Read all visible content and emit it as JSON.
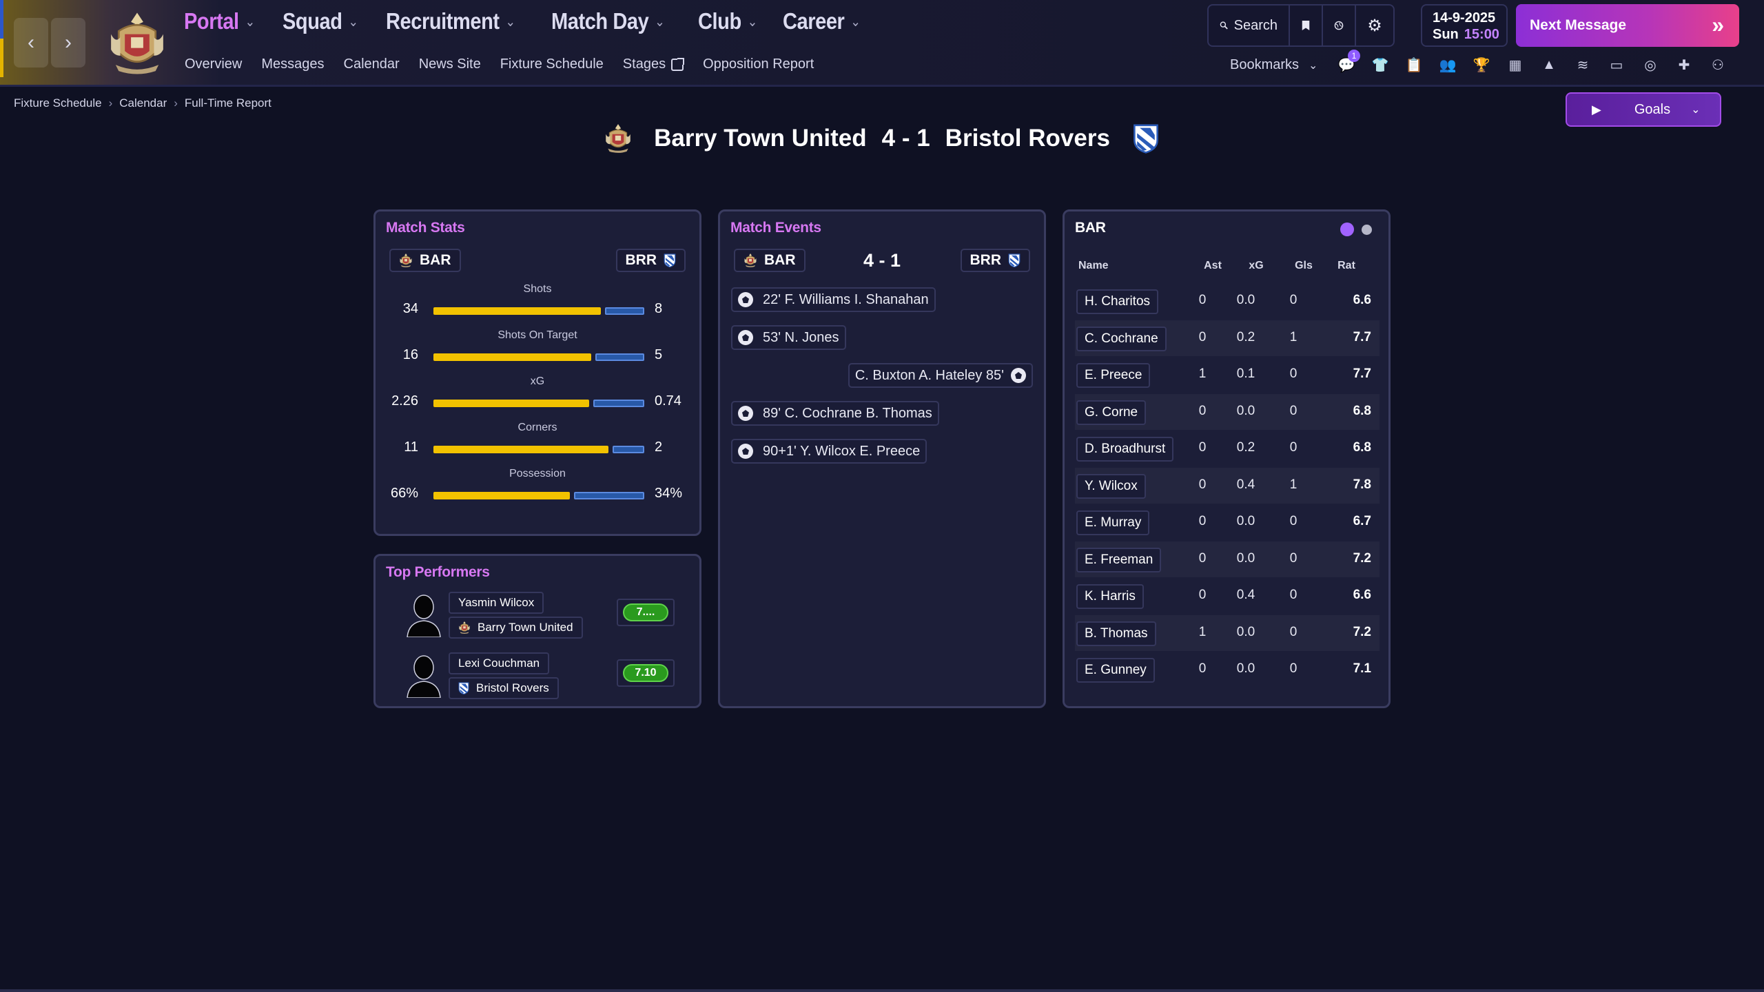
{
  "header": {
    "menu": [
      {
        "label": "Portal",
        "active": true
      },
      {
        "label": "Squad",
        "active": false
      },
      {
        "label": "Recruitment",
        "active": false
      },
      {
        "label": "Match Day",
        "active": false
      },
      {
        "label": "Club",
        "active": false
      },
      {
        "label": "Career",
        "active": false
      }
    ],
    "submenu": [
      "Overview",
      "Messages",
      "Calendar",
      "News Site",
      "Fixture Schedule",
      "Stages",
      "Opposition Report"
    ],
    "search_label": "Search",
    "date": "14-9-2025",
    "day": "Sun",
    "time": "15:00",
    "next_message": "Next Message",
    "bookmarks": "Bookmarks",
    "notification_count": "1"
  },
  "breadcrumb": [
    "Fixture Schedule",
    "Calendar",
    "Full-Time Report"
  ],
  "goals_button": "Goals",
  "match": {
    "home": "Barry Town United",
    "away": "Bristol Rovers",
    "score": "4 - 1",
    "home_abbr": "BAR",
    "away_abbr": "BRR"
  },
  "match_stats": {
    "title": "Match Stats",
    "stats": [
      {
        "label": "Shots",
        "home": "34",
        "away": "8",
        "home_val": 34,
        "away_val": 8
      },
      {
        "label": "Shots On Target",
        "home": "16",
        "away": "5",
        "home_val": 16,
        "away_val": 5
      },
      {
        "label": "xG",
        "home": "2.26",
        "away": "0.74",
        "home_val": 2.26,
        "away_val": 0.74
      },
      {
        "label": "Corners",
        "home": "11",
        "away": "2",
        "home_val": 11,
        "away_val": 2
      },
      {
        "label": "Possession",
        "home": "66%",
        "away": "34%",
        "home_val": 66,
        "away_val": 34
      }
    ]
  },
  "match_events": {
    "title": "Match Events",
    "events": [
      {
        "text": "22' F. Williams I. Shanahan",
        "side": "home"
      },
      {
        "text": "53' N. Jones",
        "side": "home"
      },
      {
        "text": "C. Buxton A. Hateley 85'",
        "side": "away"
      },
      {
        "text": "89' C. Cochrane B. Thomas",
        "side": "home"
      },
      {
        "text": "90+1' Y. Wilcox E. Preece",
        "side": "home"
      }
    ]
  },
  "top_performers": {
    "title": "Top Performers",
    "players": [
      {
        "name": "Yasmin Wilcox",
        "club": "Barry Town United",
        "rating": "7...."
      },
      {
        "name": "Lexi Couchman",
        "club": "Bristol Rovers",
        "rating": "7.10"
      }
    ]
  },
  "player_table": {
    "title": "BAR",
    "headers": [
      "Name",
      "Ast",
      "xG",
      "Gls",
      "Rat"
    ],
    "rows": [
      {
        "name": "H. Charitos",
        "ast": "0",
        "xg": "0.0",
        "gls": "0",
        "rat": "6.6"
      },
      {
        "name": "C. Cochrane",
        "ast": "0",
        "xg": "0.2",
        "gls": "1",
        "rat": "7.7"
      },
      {
        "name": "E. Preece",
        "ast": "1",
        "xg": "0.1",
        "gls": "0",
        "rat": "7.7"
      },
      {
        "name": "G. Corne",
        "ast": "0",
        "xg": "0.0",
        "gls": "0",
        "rat": "6.8"
      },
      {
        "name": "D. Broadhurst",
        "ast": "0",
        "xg": "0.2",
        "gls": "0",
        "rat": "6.8"
      },
      {
        "name": "Y. Wilcox",
        "ast": "0",
        "xg": "0.4",
        "gls": "1",
        "rat": "7.8"
      },
      {
        "name": "E. Murray",
        "ast": "0",
        "xg": "0.0",
        "gls": "0",
        "rat": "6.7"
      },
      {
        "name": "E. Freeman",
        "ast": "0",
        "xg": "0.0",
        "gls": "0",
        "rat": "7.2"
      },
      {
        "name": "K. Harris",
        "ast": "0",
        "xg": "0.4",
        "gls": "0",
        "rat": "6.6"
      },
      {
        "name": "B. Thomas",
        "ast": "1",
        "xg": "0.0",
        "gls": "0",
        "rat": "7.2"
      },
      {
        "name": "E. Gunney",
        "ast": "0",
        "xg": "0.0",
        "gls": "0",
        "rat": "7.1"
      }
    ]
  },
  "colors": {
    "accent": "#d778f2",
    "home_bar": "#f2c200",
    "away_bar": "#2859a8",
    "rating_good": "#2a9a1e"
  }
}
